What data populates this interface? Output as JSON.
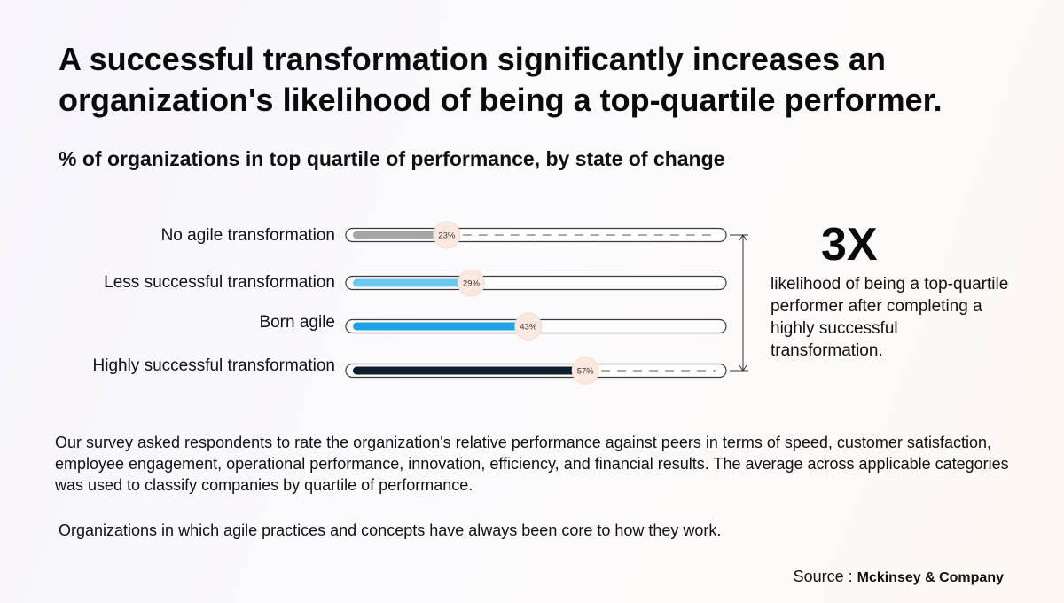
{
  "title": "A successful transformation significantly increases an organization's likelihood of being a top-quartile performer.",
  "subtitle": "% of organizations in top quartile of performance, by state of change",
  "chart_data": {
    "type": "bar",
    "categories": [
      "No agile transformation",
      "Less successful transformation",
      "Born agile",
      "Highly successful transformation"
    ],
    "values": [
      23,
      29,
      43,
      57
    ],
    "value_labels": [
      "23%",
      "29%",
      "43%",
      "57%"
    ],
    "ylim": [
      0,
      100
    ],
    "orientation": "horizontal",
    "colors": [
      "#a6a6a6",
      "#6cc6ee",
      "#1ea2e6",
      "#0c1d2e"
    ]
  },
  "callout": {
    "big": "3X",
    "text": "likelihood of being a top-quartile performer after completing a highly successful transformation."
  },
  "paragraphs": [
    "Our survey asked respondents to rate the organization's relative performance against peers in terms of speed, customer satisfaction, employee engagement, operational performance, innovation, efficiency, and financial results. The average across applicable categories was used to classify companies by quartile of performance.",
    "Organizations in which agile practices and concepts have always been core to how they work."
  ],
  "source": {
    "prefix": "Source : ",
    "name": "Mckinsey & Company"
  }
}
